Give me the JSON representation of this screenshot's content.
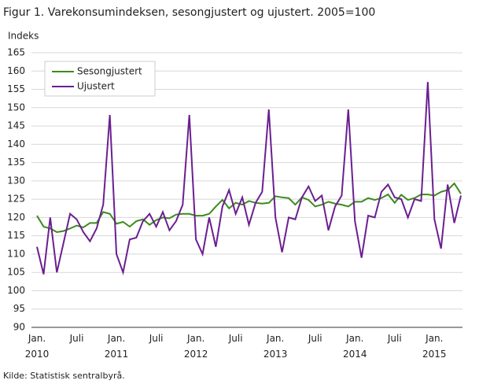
{
  "chart_data": {
    "type": "line",
    "title": "Figur 1. Varekonsumindeksen, sesongjustert og ujustert. 2005=100",
    "y_label": "Indeks",
    "source": "Kilde: Statistisk sentralbyrå.",
    "categories": [
      "Jan. 2010",
      null,
      null,
      null,
      null,
      null,
      "Juli",
      null,
      null,
      null,
      null,
      null,
      "Jan. 2011",
      null,
      null,
      null,
      null,
      null,
      "Juli",
      null,
      null,
      null,
      null,
      null,
      "Jan. 2012",
      null,
      null,
      null,
      null,
      null,
      "Juli",
      null,
      null,
      null,
      null,
      null,
      "Jan. 2013",
      null,
      null,
      null,
      null,
      null,
      "Juli",
      null,
      null,
      null,
      null,
      null,
      "Jan. 2014",
      null,
      null,
      null,
      null,
      null,
      "Juli",
      null,
      null,
      null,
      null,
      null,
      "Jan. 2015",
      null,
      null,
      null,
      null
    ],
    "series": [
      {
        "name": "Sesongjustert",
        "color": "#3e8a1e",
        "values": [
          120.5,
          117.5,
          117,
          116,
          116.3,
          117,
          117.8,
          117.3,
          118.5,
          118.5,
          121.5,
          121,
          118.3,
          118.8,
          117.5,
          119,
          119.5,
          118,
          119.3,
          120,
          119.8,
          120.8,
          121,
          121,
          120.5,
          120.5,
          121,
          123,
          124.8,
          122.5,
          124,
          123.5,
          124.5,
          124,
          123.8,
          124,
          125.8,
          125.5,
          125.3,
          123.5,
          125.5,
          124.8,
          123,
          123.5,
          124.3,
          123.8,
          123.5,
          123,
          124.3,
          124.3,
          125.3,
          124.8,
          125.3,
          126.3,
          124,
          126.2,
          124.8,
          125.3,
          126.3,
          126.3,
          126,
          127,
          127.5,
          129.3,
          126.5
        ]
      },
      {
        "name": "Ujustert",
        "color": "#6b1f91",
        "values": [
          112,
          104.5,
          120,
          105,
          113,
          121,
          119.5,
          116,
          113.5,
          117,
          123.5,
          148,
          110,
          105,
          114,
          114.5,
          119,
          121,
          117.5,
          121.5,
          116.5,
          119,
          123.5,
          148,
          114,
          110,
          120,
          112,
          123,
          127.5,
          121,
          125.5,
          118,
          124,
          127,
          149.5,
          120,
          110.5,
          120,
          119.5,
          125.5,
          128.5,
          124.5,
          126,
          116.5,
          123,
          126,
          149.5,
          119,
          109,
          120.5,
          120,
          127,
          129,
          125.5,
          125,
          120,
          125,
          124.5,
          157,
          119.5,
          111.5,
          129,
          118.5,
          126
        ]
      }
    ],
    "ylim": [
      90,
      165
    ],
    "yticks": [
      90,
      95,
      100,
      105,
      110,
      115,
      120,
      125,
      130,
      135,
      140,
      145,
      150,
      155,
      160,
      165
    ],
    "grid": true
  }
}
